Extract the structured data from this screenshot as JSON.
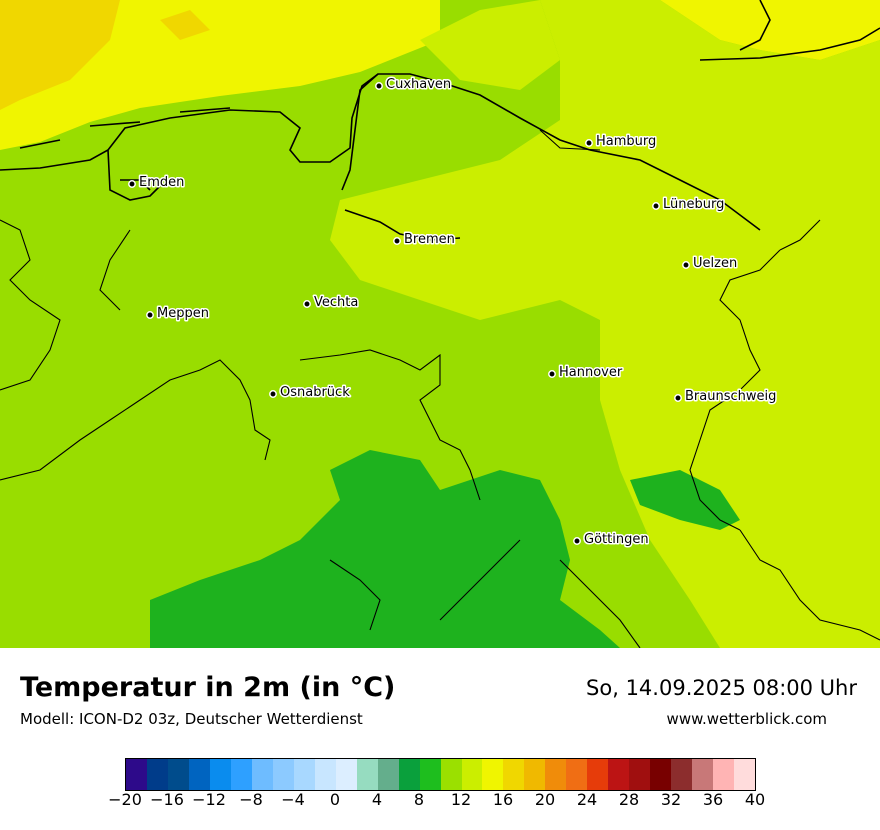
{
  "map": {
    "cities": [
      {
        "name": "Cuxhaven"
      },
      {
        "name": "Hamburg"
      },
      {
        "name": "Emden"
      },
      {
        "name": "Lüneburg"
      },
      {
        "name": "Bremen"
      },
      {
        "name": "Uelzen"
      },
      {
        "name": "Vechta"
      },
      {
        "name": "Meppen"
      },
      {
        "name": "Hannover"
      },
      {
        "name": "Osnabrück"
      },
      {
        "name": "Braunschweig"
      },
      {
        "name": "Göttingen"
      }
    ],
    "colors": {
      "sea_north": "#ffff00",
      "sea_warm": "#f2d600",
      "land_mid": "#99dd00",
      "land_light": "#cbee00",
      "land_dark": "#1eb21e",
      "coast": "#000000"
    }
  },
  "footer": {
    "title": "Temperatur in 2m (in °C)",
    "subtitle": "Modell: ICON-D2 03z, Deutscher Wetterdienst",
    "datetime": "So, 14.09.2025 08:00 Uhr",
    "website": "www.wetterblick.com"
  },
  "legend": {
    "colors": [
      "#2d0a8a",
      "#003c8a",
      "#004c8c",
      "#0064c0",
      "#0a8cee",
      "#2ea0ff",
      "#6ebcff",
      "#8ccaff",
      "#a8d8ff",
      "#c8e6ff",
      "#dceeff",
      "#96dcc0",
      "#64ae8c",
      "#0aa03c",
      "#1ebe1e",
      "#9be000",
      "#cbee00",
      "#f0f500",
      "#f0d700",
      "#f0b900",
      "#f08c0a",
      "#f06e14",
      "#e63c0a",
      "#bc1414",
      "#a00f0f",
      "#780000",
      "#8c2d2d",
      "#c87878",
      "#ffb4b4",
      "#ffdcdc"
    ],
    "ticks": [
      "−20",
      "−16",
      "−12",
      "−8",
      "−4",
      "0",
      "4",
      "8",
      "12",
      "16",
      "20",
      "24",
      "28",
      "32",
      "36",
      "40"
    ]
  }
}
